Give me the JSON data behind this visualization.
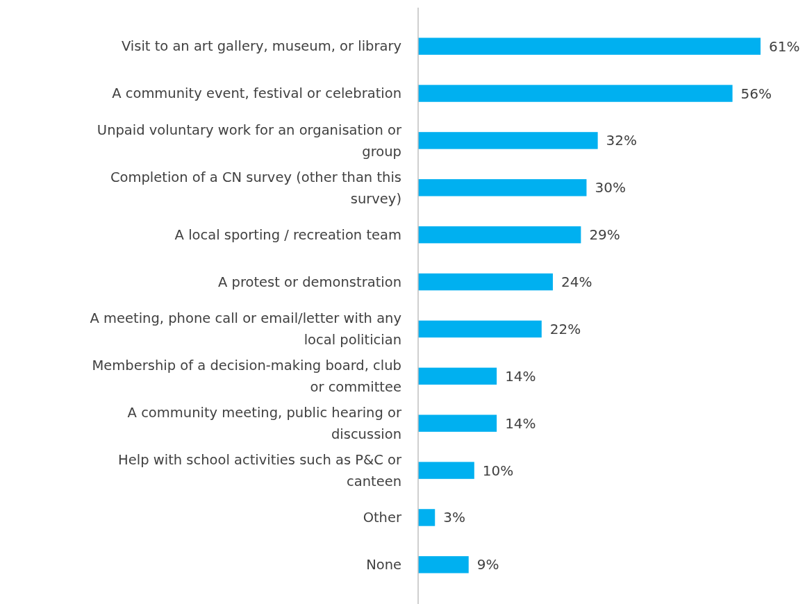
{
  "chart_data": {
    "type": "bar",
    "orientation": "horizontal",
    "categories": [
      "Visit to an art gallery, museum, or library",
      "A community event, festival or celebration",
      "Unpaid voluntary work for an organisation or group",
      "Completion of a CN survey (other than this survey)",
      "A local sporting / recreation team",
      "A protest or demonstration",
      "A meeting, phone call or email/letter with any local politician",
      "Membership of a decision-making board, club or committee",
      "A community meeting, public hearing or discussion",
      "Help with school activities such as P&C or canteen",
      "Other",
      "None"
    ],
    "values": [
      61,
      56,
      32,
      30,
      29,
      24,
      22,
      14,
      14,
      10,
      3,
      9
    ],
    "value_labels": [
      "61%",
      "56%",
      "32%",
      "30%",
      "29%",
      "24%",
      "22%",
      "14%",
      "14%",
      "10%",
      "3%",
      "9%"
    ],
    "color": "#00b0f0"
  }
}
